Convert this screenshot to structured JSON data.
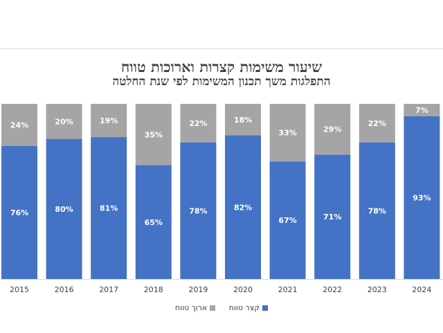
{
  "chart_data": {
    "type": "bar",
    "stacked": true,
    "title": "שיעור משימות קצרות וארוכות טווח",
    "subtitle": "התפלגות משך תכנון המשימות לפי שנת החלטה",
    "categories": [
      "2015",
      "2016",
      "2017",
      "2018",
      "2019",
      "2020",
      "2021",
      "2022",
      "2023",
      "2024"
    ],
    "series": [
      {
        "name": "קצר טווח",
        "color": "#4472c4",
        "values": [
          76,
          80,
          81,
          65,
          78,
          82,
          67,
          71,
          78,
          93
        ]
      },
      {
        "name": "ארוך טווח",
        "color": "#a5a5a5",
        "values": [
          24,
          20,
          19,
          35,
          22,
          18,
          33,
          29,
          22,
          7
        ]
      }
    ],
    "ylim": [
      0,
      100
    ],
    "value_suffix": "%",
    "legend_position": "bottom",
    "grid": false
  }
}
